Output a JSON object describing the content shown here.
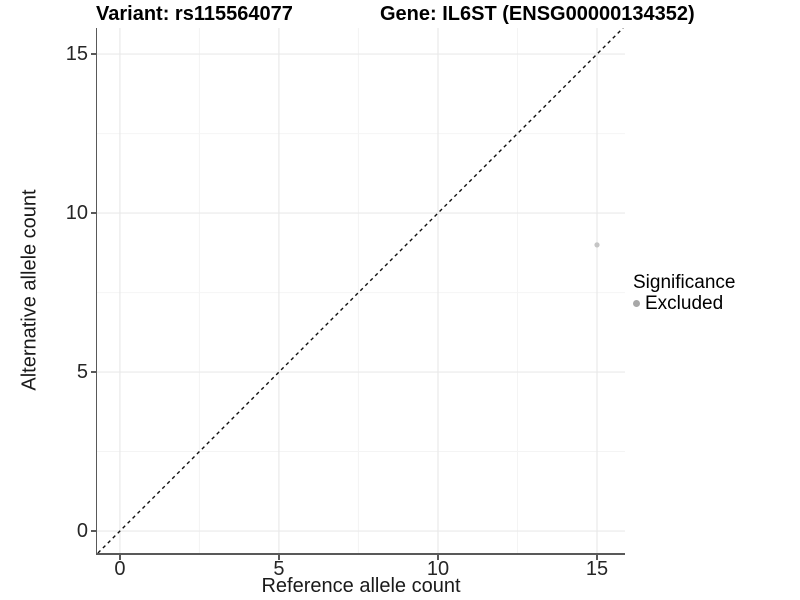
{
  "header": {
    "variant_title": "Variant: rs115564077",
    "gene_title": "Gene: IL6ST (ENSG00000134352)"
  },
  "chart_data": {
    "type": "scatter",
    "title_left": "Variant: rs115564077",
    "title_right": "Gene: IL6ST (ENSG00000134352)",
    "xlabel": "Reference allele count",
    "ylabel": "Alternative allele count",
    "xlim": [
      -0.72,
      15.88
    ],
    "ylim": [
      -0.69,
      15.82
    ],
    "x_ticks": [
      0,
      5,
      10,
      15
    ],
    "y_ticks": [
      0,
      5,
      10,
      15
    ],
    "x_minor_ticks": [
      2.5,
      7.5,
      12.5
    ],
    "y_minor_ticks": [
      2.5,
      7.5,
      12.5
    ],
    "grid": {
      "major_color": "#e9e9e9",
      "minor_color": "#f4f4f4"
    },
    "reference_line": {
      "type": "identity",
      "equation": "y = x",
      "style": "dashed",
      "color": "#111111"
    },
    "series": [
      {
        "name": "Excluded",
        "color": "#c5c5c5",
        "points": [
          [
            15,
            9
          ]
        ]
      }
    ],
    "legend": {
      "title": "Significance",
      "position": "right",
      "items": [
        {
          "label": "Excluded",
          "color": "#a8a8a8"
        }
      ]
    }
  }
}
